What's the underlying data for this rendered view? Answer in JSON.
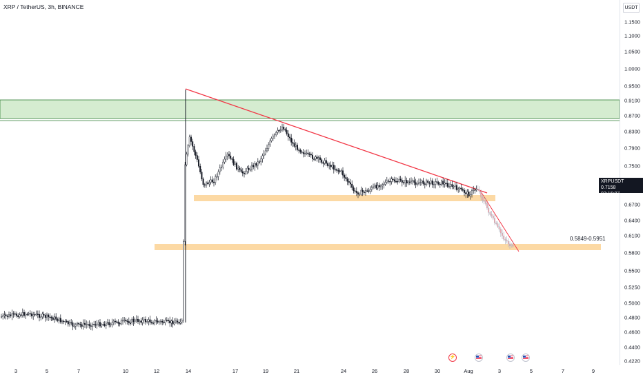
{
  "header": {
    "title": "XRP / TetherUS, 3h, BINANCE"
  },
  "price_axis": {
    "currency": "USDT",
    "ticks": [
      "1.1500",
      "1.1000",
      "1.0500",
      "1.0000",
      "0.9500",
      "0.9100",
      "0.8700",
      "0.8300",
      "0.7900",
      "0.7500",
      "0.7158",
      "0.6700",
      "0.6400",
      "0.6100",
      "0.5800",
      "0.5500",
      "0.5250",
      "0.5000",
      "0.4800",
      "0.4600",
      "0.4400",
      "0.4220"
    ],
    "current": {
      "symbol": "XRPUSDT",
      "price": "0.7158",
      "countdown": "02:16:07"
    }
  },
  "time_axis": {
    "ticks": [
      "3",
      "5",
      "7",
      "10",
      "12",
      "14",
      "17",
      "19",
      "21",
      "24",
      "26",
      "28",
      "30",
      "Aug",
      "3",
      "5",
      "7",
      "9"
    ]
  },
  "annotations": {
    "support_zone_label": "0.5849-0.5951"
  },
  "events": [
    {
      "icon": "lightning-event-icon"
    },
    {
      "icon": "us-flag-event-icon"
    },
    {
      "icon": "us-flag-event-icon"
    },
    {
      "icon": "us-flag-event-icon"
    }
  ],
  "colors": {
    "up": "#131722",
    "down": "#131722",
    "trendline": "#f23645",
    "resistance_zone": "#d5ecd0",
    "support_zone": "#fcd9a4",
    "projection": "#f23645"
  }
}
